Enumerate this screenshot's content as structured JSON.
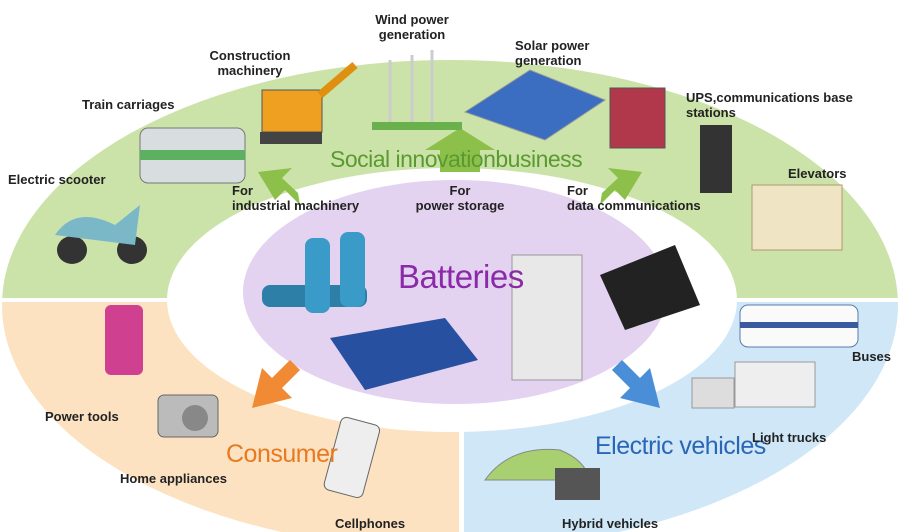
{
  "center_label": "Batteries",
  "arrows": [
    "For\nindustrial machinery",
    "For\npower storage",
    "For\ndata communications"
  ],
  "segments": [
    {
      "title": "Social innovationbusiness",
      "items": [
        "Electric scooter",
        "Train carriages",
        "Construction\nmachinery",
        "Wind power\ngeneration",
        "Solar power\ngeneration",
        "UPS,communications base\nstations",
        "Elevators"
      ]
    },
    {
      "title": "Consumer",
      "items": [
        "Power tools",
        "Home appliances",
        "Cellphones"
      ]
    },
    {
      "title": "Electric vehicles",
      "items": [
        "Buses",
        "Light trucks",
        "Hybrid vehicles"
      ]
    }
  ]
}
